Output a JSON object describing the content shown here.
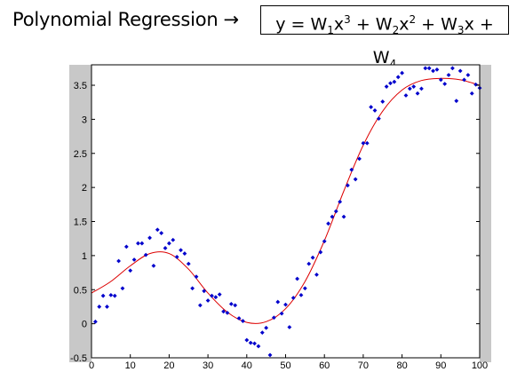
{
  "header": {
    "title": "Polynomial Regression",
    "arrow": "→",
    "formula": {
      "y": "y",
      "eq": " = ",
      "w1": "W",
      "s1": "1",
      "x3": "x",
      "p3": "3",
      "plus1": " + ",
      "w2": "W",
      "s2": "2",
      "x2": "x",
      "p2": "2",
      "plus2": " + ",
      "w3": "W",
      "s3": "3",
      "x1": "x",
      "plus3": " + ",
      "w4": "W",
      "s4": "4"
    }
  },
  "chart_data": {
    "type": "scatter",
    "title": "",
    "xlabel": "",
    "ylabel": "",
    "xlim": [
      0,
      100
    ],
    "ylim": [
      -0.5,
      3.8
    ],
    "xticks": [
      0,
      10,
      20,
      30,
      40,
      50,
      60,
      70,
      80,
      90,
      100
    ],
    "yticks": [
      -0.5,
      0,
      0.5,
      1,
      1.5,
      2,
      2.5,
      3,
      3.5
    ],
    "grid": false,
    "colors": {
      "points": "#0000cc",
      "fit": "#dd0000",
      "side_bands": "#c8c8c8"
    },
    "series": [
      {
        "kind": "points",
        "x": [
          1,
          2,
          3,
          4,
          5,
          6,
          7,
          8,
          9,
          10,
          11,
          12,
          13,
          14,
          15,
          16,
          17,
          18,
          19,
          20,
          21,
          22,
          23,
          24,
          25,
          26,
          27,
          28,
          29,
          30,
          31,
          32,
          33,
          34,
          35,
          36,
          37,
          38,
          39,
          40,
          41,
          42,
          43,
          44,
          45,
          46,
          47,
          48,
          49,
          50,
          51,
          52,
          53,
          54,
          55,
          56,
          57,
          58,
          59,
          60,
          61,
          62,
          63,
          64,
          65,
          66,
          67,
          68,
          69,
          70,
          71,
          72,
          73,
          74,
          75,
          76,
          77,
          78,
          79,
          80,
          81,
          82,
          83,
          84,
          85,
          86,
          87,
          88,
          89,
          90,
          91,
          92,
          93,
          94,
          95,
          96,
          97,
          98,
          99,
          100
        ],
        "y": [
          0.03,
          0.25,
          0.41,
          0.25,
          0.42,
          0.41,
          0.92,
          0.52,
          1.13,
          0.78,
          0.94,
          1.18,
          1.18,
          1.01,
          1.26,
          0.85,
          1.38,
          1.33,
          1.11,
          1.18,
          1.23,
          0.98,
          1.08,
          1.03,
          0.88,
          0.52,
          0.69,
          0.27,
          0.48,
          0.34,
          0.41,
          0.39,
          0.43,
          0.18,
          0.16,
          0.29,
          0.27,
          0.08,
          0.04,
          -0.24,
          -0.28,
          -0.29,
          -0.33,
          -0.13,
          -0.06,
          -0.46,
          0.09,
          0.32,
          0.15,
          0.28,
          -0.05,
          0.38,
          0.66,
          0.42,
          0.52,
          0.88,
          0.97,
          0.72,
          1.05,
          1.21,
          1.47,
          1.57,
          1.65,
          1.79,
          1.57,
          2.03,
          2.26,
          2.12,
          2.42,
          2.65,
          2.65,
          3.18,
          3.13,
          3.01,
          3.26,
          3.48,
          3.53,
          3.55,
          3.62,
          3.68,
          3.35,
          3.45,
          3.48,
          3.38,
          3.45,
          3.75,
          3.75,
          3.71,
          3.73,
          3.58,
          3.52,
          3.65,
          3.75,
          3.27,
          3.71,
          3.58,
          3.65,
          3.38,
          3.51,
          3.46
        ]
      },
      {
        "kind": "fit",
        "x": [
          0,
          5,
          10,
          15,
          20,
          25,
          30,
          35,
          40,
          45,
          50,
          55,
          60,
          65,
          70,
          75,
          80,
          85,
          90,
          95,
          100
        ],
        "y": [
          0.45,
          0.62,
          0.85,
          1.03,
          1.03,
          0.8,
          0.45,
          0.17,
          0.02,
          0.03,
          0.22,
          0.62,
          1.22,
          1.95,
          2.62,
          3.12,
          3.43,
          3.57,
          3.6,
          3.58,
          3.5
        ]
      }
    ]
  }
}
